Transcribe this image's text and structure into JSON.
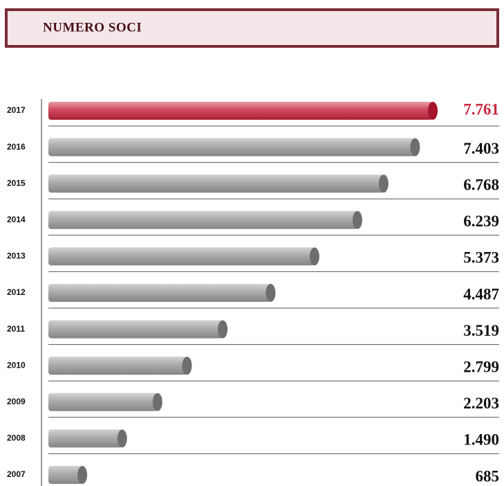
{
  "chart_data": {
    "type": "bar",
    "orientation": "horizontal",
    "title": "NUMERO SOCI",
    "categories": [
      "2017",
      "2016",
      "2015",
      "2014",
      "2013",
      "2012",
      "2011",
      "2010",
      "2009",
      "2008",
      "2007"
    ],
    "values": [
      7761,
      7403,
      6768,
      6239,
      5373,
      4487,
      3519,
      2799,
      2203,
      1490,
      685
    ],
    "value_labels": [
      "7.761",
      "7.403",
      "6.768",
      "6.239",
      "5.373",
      "4.487",
      "3.519",
      "2.799",
      "2.203",
      "1.490",
      "685"
    ],
    "colors": [
      "#c8283f",
      "#9c9c9c",
      "#9c9c9c",
      "#9c9c9c",
      "#9c9c9c",
      "#9c9c9c",
      "#9c9c9c",
      "#9c9c9c",
      "#9c9c9c",
      "#9c9c9c",
      "#9c9c9c"
    ]
  }
}
